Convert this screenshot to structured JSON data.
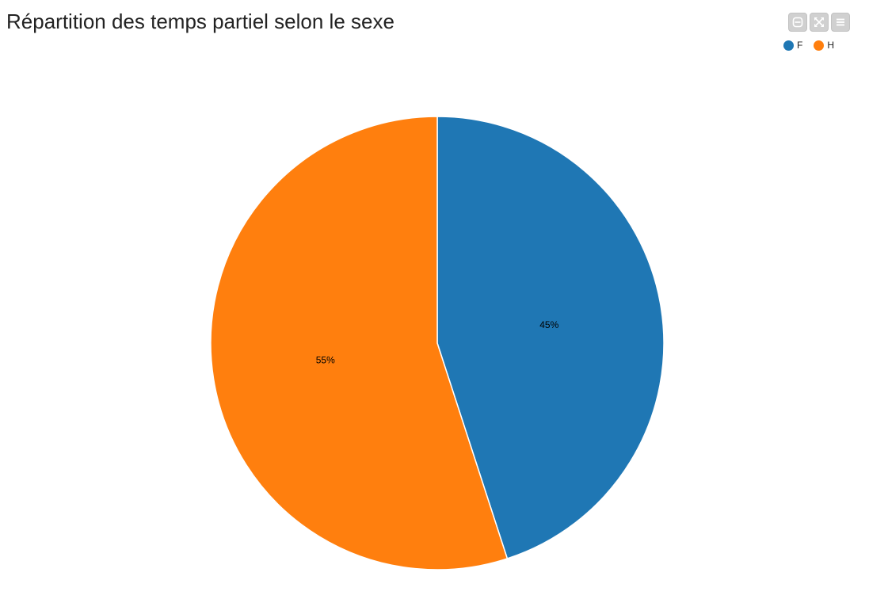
{
  "chart_data": {
    "type": "pie",
    "title": "Répartition des temps partiel selon le sexe",
    "legend_position": "top-right",
    "slices": [
      {
        "label": "F",
        "value": 45,
        "display": "45%",
        "color": "#1f77b4"
      },
      {
        "label": "H",
        "value": 55,
        "display": "55%",
        "color": "#ff7f0e"
      }
    ]
  },
  "toolbar": {
    "icons": [
      "minimize-icon",
      "fullscreen-icon",
      "menu-icon"
    ]
  }
}
